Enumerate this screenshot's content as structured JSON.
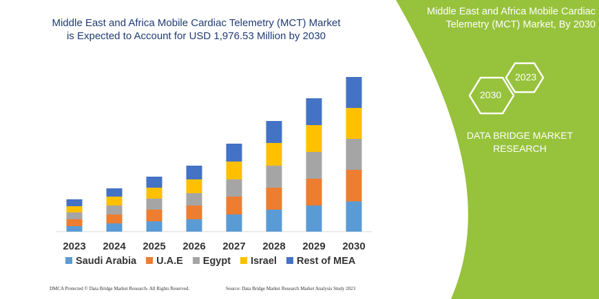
{
  "title_line1": "Middle East and Africa Mobile Cardiac Telemetry (MCT) Market",
  "title_line2": "is Expected to Account for USD 1,976.53 Million by 2030",
  "panel": {
    "title_line1": "Middle East and Africa Mobile Cardiac",
    "title_line2": "Telemetry (MCT) Market, By 2030",
    "hex1": "2023",
    "hex2": "2030",
    "brand_line1": "DATA BRIDGE MARKET",
    "brand_line2": "RESEARCH",
    "color": "#97c23c"
  },
  "footer_left": "DMCA Protected © Data Bridge Market Research-  All Rights Reserved.",
  "footer_right": "Source: Data Bridge Market Research  Market Analysis Study 2023",
  "chart_data": {
    "type": "bar",
    "stacked": true,
    "grid": false,
    "legend": "bottom",
    "categories": [
      "2023",
      "2024",
      "2025",
      "2026",
      "2027",
      "2028",
      "2029",
      "2030"
    ],
    "series": [
      {
        "name": "Saudi Arabia",
        "color": "#5b9bd5",
        "values": [
          8,
          12,
          15,
          18,
          25,
          32,
          38,
          44
        ]
      },
      {
        "name": "U.A.E",
        "color": "#ed7d31",
        "values": [
          10,
          13,
          17,
          20,
          26,
          32,
          39,
          46
        ]
      },
      {
        "name": "Egypt",
        "color": "#a5a5a5",
        "values": [
          10,
          13,
          16,
          18,
          25,
          32,
          39,
          45
        ]
      },
      {
        "name": "Israel",
        "color": "#ffc000",
        "values": [
          9,
          13,
          16,
          20,
          26,
          33,
          39,
          45
        ]
      },
      {
        "name": "Rest of MEA",
        "color": "#4472c4",
        "values": [
          10,
          12,
          16,
          20,
          26,
          32,
          39,
          45
        ]
      }
    ]
  }
}
